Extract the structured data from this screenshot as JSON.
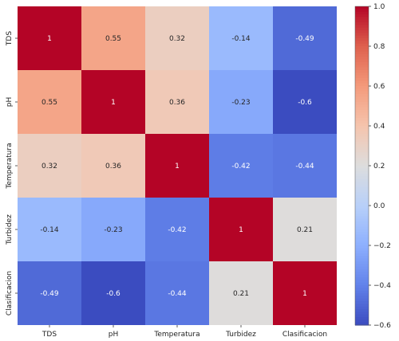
{
  "chart_data": {
    "type": "heatmap",
    "title": "",
    "xlabel": "",
    "ylabel": "",
    "x_categories": [
      "TDS",
      "pH",
      "Temperatura",
      "Turbidez",
      "Clasificacion"
    ],
    "y_categories": [
      "TDS",
      "pH",
      "Temperatura",
      "Turbidez",
      "Clasificacion"
    ],
    "values": [
      [
        1,
        0.55,
        0.32,
        -0.14,
        -0.49
      ],
      [
        0.55,
        1,
        0.36,
        -0.23,
        -0.6
      ],
      [
        0.32,
        0.36,
        1,
        -0.42,
        -0.44
      ],
      [
        -0.14,
        -0.23,
        -0.42,
        1,
        0.21
      ],
      [
        -0.49,
        -0.6,
        -0.44,
        0.21,
        1
      ]
    ],
    "cell_labels": [
      [
        "1",
        "0.55",
        "0.32",
        "-0.14",
        "-0.49"
      ],
      [
        "0.55",
        "1",
        "0.36",
        "-0.23",
        "-0.6"
      ],
      [
        "0.32",
        "0.36",
        "1",
        "-0.42",
        "-0.44"
      ],
      [
        "-0.14",
        "-0.23",
        "-0.42",
        "1",
        "0.21"
      ],
      [
        "-0.49",
        "-0.6",
        "-0.44",
        "0.21",
        "1"
      ]
    ],
    "colormap": "coolwarm",
    "vmin": -0.6,
    "vmax": 1.0,
    "colorbar": {
      "ticks": [
        1.0,
        0.8,
        0.6,
        0.4,
        0.2,
        0.0,
        -0.2,
        -0.4,
        -0.6
      ],
      "tick_labels": [
        "1.0",
        "0.8",
        "0.6",
        "0.4",
        "0.2",
        "0.0",
        "−0.2",
        "−0.4",
        "−0.6"
      ],
      "placement": "right"
    },
    "colors": {
      "low": "#3b4cc0",
      "mid": "#dddddd",
      "high": "#b40426"
    },
    "grid": false
  }
}
